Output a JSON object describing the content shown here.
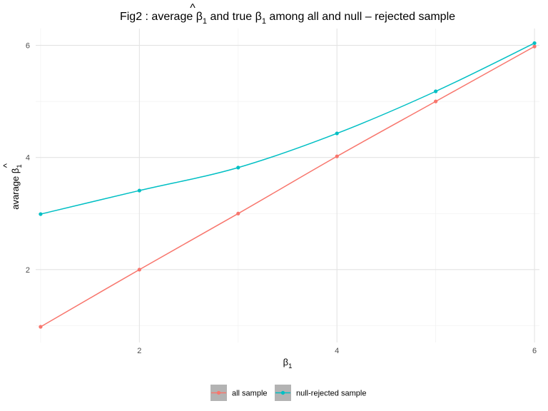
{
  "chart_data": {
    "type": "line",
    "title": "Fig2 : average β̂₁ and true β₁ among all and null – rejected sample",
    "title_parts": {
      "pre": "Fig2 : average ",
      "beta": "β",
      "hat": "^",
      "sub1": "1",
      "mid": " and true ",
      "beta2": "β",
      "sub2": "1",
      "post": " among all and null – rejected sample"
    },
    "xlabel": "β1",
    "xlabel_parts": {
      "beta": "β",
      "sub": "1"
    },
    "ylabel": "avarage β̂1",
    "ylabel_parts": {
      "pre": "avarage ",
      "beta": "β",
      "hat": "^",
      "sub": "1"
    },
    "x": [
      1,
      2,
      3,
      4,
      5,
      6
    ],
    "xlim": [
      0.95,
      6.05
    ],
    "ylim": [
      0.7,
      6.3
    ],
    "xticks": [
      2,
      4,
      6
    ],
    "xtick_labels": [
      "2",
      "4",
      "6"
    ],
    "yticks": [
      2,
      4,
      6
    ],
    "ytick_labels": [
      "2",
      "4",
      "6"
    ],
    "grid": true,
    "legend_position": "bottom",
    "series": [
      {
        "name": "all sample",
        "color": "#F8766D",
        "values": [
          0.98,
          2.0,
          3.0,
          4.02,
          5.0,
          5.98
        ]
      },
      {
        "name": "null-rejected sample",
        "color": "#00BFC4",
        "values": [
          2.99,
          3.41,
          3.82,
          4.43,
          5.18,
          6.04
        ]
      }
    ]
  }
}
